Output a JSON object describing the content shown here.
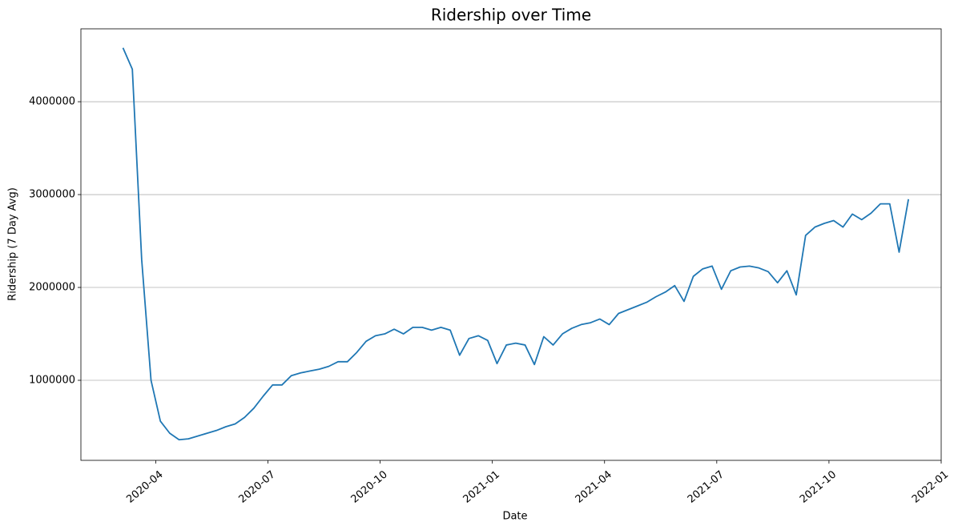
{
  "chart_data": {
    "type": "line",
    "title": "Ridership over Time",
    "x_label": "Date",
    "y_label": "Ridership (7 Day Avg)",
    "x": [
      "2020-03",
      "2020-03",
      "2020-03",
      "2020-03",
      "2020-04",
      "2020-04",
      "2020-04",
      "2020-04",
      "2020-05",
      "2020-05",
      "2020-05",
      "2020-05",
      "2020-06",
      "2020-06",
      "2020-06",
      "2020-06",
      "2020-07",
      "2020-07",
      "2020-07",
      "2020-07",
      "2020-08",
      "2020-08",
      "2020-08",
      "2020-08",
      "2020-09",
      "2020-09",
      "2020-09",
      "2020-09",
      "2020-10",
      "2020-10",
      "2020-10",
      "2020-10",
      "2020-11",
      "2020-11",
      "2020-11",
      "2020-11",
      "2020-12",
      "2020-12",
      "2020-12",
      "2020-12",
      "2021-01",
      "2021-01",
      "2021-01",
      "2021-01",
      "2021-02",
      "2021-02",
      "2021-02",
      "2021-02",
      "2021-03",
      "2021-03",
      "2021-03",
      "2021-03",
      "2021-04",
      "2021-04",
      "2021-04",
      "2021-04",
      "2021-05",
      "2021-05",
      "2021-05",
      "2021-05",
      "2021-06",
      "2021-06",
      "2021-06",
      "2021-06",
      "2021-07",
      "2021-07",
      "2021-07",
      "2021-07",
      "2021-08",
      "2021-08",
      "2021-08",
      "2021-08",
      "2021-09",
      "2021-09",
      "2021-09",
      "2021-09",
      "2021-10",
      "2021-10",
      "2021-10",
      "2021-10",
      "2021-11",
      "2021-11",
      "2021-11",
      "2021-11",
      "2021-12"
    ],
    "series": [
      {
        "name": "Ridership",
        "color": "#1f77b4",
        "values": [
          4580000,
          4350000,
          2300000,
          1000000,
          560000,
          430000,
          360000,
          370000,
          400000,
          430000,
          460000,
          500000,
          530000,
          600000,
          700000,
          830000,
          950000,
          950000,
          1050000,
          1080000,
          1100000,
          1120000,
          1150000,
          1200000,
          1200000,
          1300000,
          1420000,
          1480000,
          1500000,
          1550000,
          1500000,
          1570000,
          1570000,
          1540000,
          1570000,
          1540000,
          1270000,
          1450000,
          1480000,
          1430000,
          1180000,
          1380000,
          1400000,
          1380000,
          1170000,
          1470000,
          1380000,
          1500000,
          1560000,
          1600000,
          1620000,
          1660000,
          1600000,
          1720000,
          1760000,
          1800000,
          1840000,
          1900000,
          1950000,
          2020000,
          1850000,
          2120000,
          2200000,
          2230000,
          1980000,
          2180000,
          2220000,
          2230000,
          2210000,
          2170000,
          2050000,
          2180000,
          1920000,
          2560000,
          2650000,
          2690000,
          2720000,
          2650000,
          2790000,
          2730000,
          2800000,
          2900000,
          2900000,
          2380000,
          2950000
        ]
      }
    ],
    "xlim": [
      "2020-02",
      "2022-01"
    ],
    "xticks": [
      "2020-04",
      "2020-07",
      "2020-10",
      "2021-01",
      "2021-04",
      "2021-07",
      "2021-10",
      "2022-01"
    ],
    "ylim": [
      138000,
      4785000
    ],
    "yticks": [
      1000000,
      2000000,
      3000000,
      4000000
    ],
    "grid": "y"
  }
}
